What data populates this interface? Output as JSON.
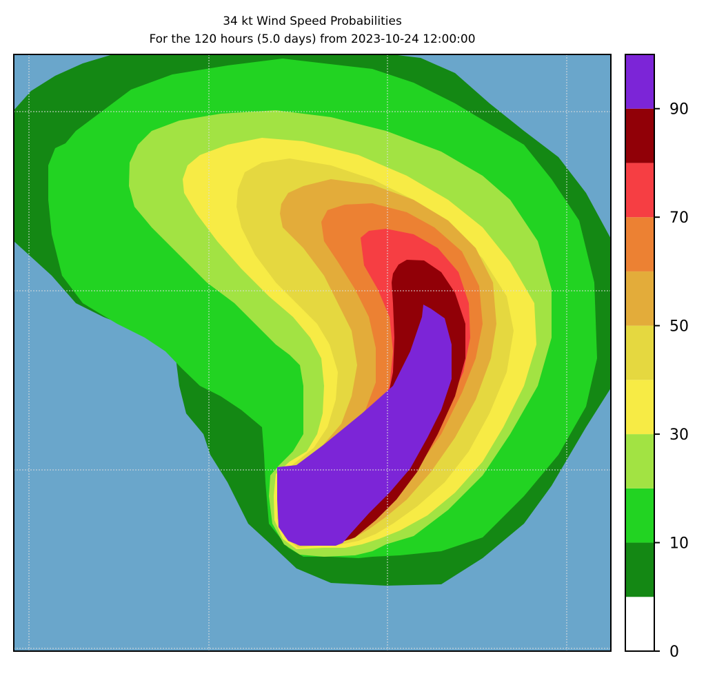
{
  "title": "34 kt Wind Speed Probabilities",
  "subtitle": "For the 120 hours (5.0 days) from 2023-10-24 12:00:00",
  "colors": {
    "ocean": "#6aa6cb",
    "band_0_10": "#ffffff",
    "band_10_20": "#148814",
    "band_20_30": "#22d322",
    "band_30_40": "#a2e343",
    "band_40_50": "#f7eb45",
    "band_50_60": "#e5d840",
    "band_60_70": "#e3ac3a",
    "band_70_80": "#ec8133",
    "band_80_90": "#f63e43",
    "band_90_100": "#910007",
    "band_100": "#7c25d7"
  },
  "colorbar": {
    "min": 0,
    "max": 100,
    "levels": [
      0,
      5,
      10,
      20,
      30,
      40,
      50,
      60,
      70,
      80,
      90,
      100
    ],
    "tick_labels": [
      "0",
      "10",
      "30",
      "50",
      "70",
      "90"
    ]
  },
  "map": {
    "gridlines": true
  }
}
